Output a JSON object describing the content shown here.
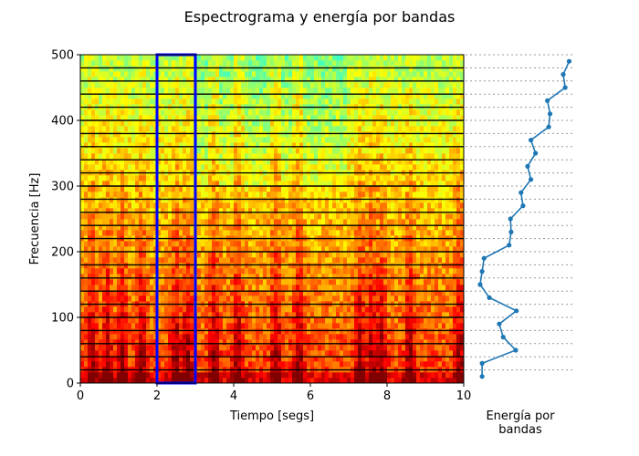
{
  "title": "Espectrograma y energía por bandas",
  "chart_data": [
    {
      "type": "heatmap",
      "name": "spectrogram",
      "xlabel": "Tiempo [segs]",
      "ylabel": "Frecuencia [Hz]",
      "xlim": [
        0,
        10
      ],
      "ylim": [
        0,
        500
      ],
      "xticks": [
        "0",
        "2",
        "4",
        "6",
        "8",
        "10"
      ],
      "yticks": [
        "0",
        "100",
        "200",
        "300",
        "400",
        "500"
      ],
      "colormap": "jet",
      "band_edges_hz": [
        0,
        20,
        40,
        60,
        80,
        100,
        120,
        140,
        160,
        180,
        200,
        220,
        240,
        260,
        280,
        300,
        320,
        340,
        360,
        380,
        400,
        420,
        440,
        460,
        480,
        500
      ],
      "band_line_color": "#000000",
      "highlight_window": {
        "x0": 2,
        "x1": 3,
        "y0": 0,
        "y1": 500,
        "color": "#0000ff"
      },
      "high_energy_times": [
        0.3,
        0.7,
        1.1,
        1.6,
        2.5,
        2.8,
        3.5,
        4.1,
        5.1,
        5.7,
        7.3,
        7.6,
        7.85,
        8.6,
        9.9
      ]
    },
    {
      "type": "line",
      "name": "band-energy",
      "xlabel": "Energía por\nbandas",
      "orientation": "vertical",
      "series_color": "#1f77b4",
      "y": [
        10,
        30,
        50,
        70,
        90,
        110,
        130,
        150,
        170,
        190,
        210,
        230,
        250,
        270,
        290,
        310,
        330,
        350,
        370,
        390,
        410,
        430,
        450,
        470,
        490
      ],
      "x": [
        0.04,
        0.04,
        0.55,
        0.36,
        0.3,
        0.56,
        0.15,
        0.01,
        0.04,
        0.07,
        0.45,
        0.48,
        0.47,
        0.66,
        0.63,
        0.78,
        0.73,
        0.85,
        0.78,
        1.05,
        1.07,
        1.03,
        1.3,
        1.27,
        1.36
      ],
      "xlim": [
        -0.1,
        1.45
      ],
      "guide_lines": "dotted"
    }
  ]
}
